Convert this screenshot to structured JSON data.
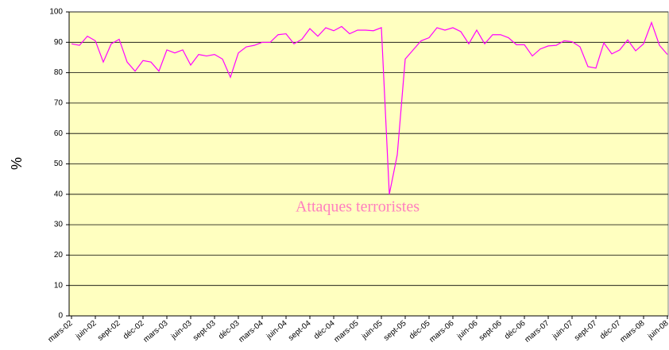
{
  "chart_data": {
    "type": "line",
    "y_label": "%",
    "annotation": "Attaques terroristes",
    "categories": [
      "mars-02",
      null,
      null,
      "juin-02",
      null,
      null,
      "sept-02",
      null,
      null,
      "déc-02",
      null,
      null,
      "mars-03",
      null,
      null,
      "juin-03",
      null,
      null,
      "sept-03",
      null,
      null,
      "déc-03",
      null,
      null,
      "mars-04",
      null,
      null,
      "juin-04",
      null,
      null,
      "sept-04",
      null,
      null,
      "déc-04",
      null,
      null,
      "mars-05",
      null,
      null,
      "juin-05",
      null,
      null,
      "sept-05",
      null,
      null,
      "déc-05",
      null,
      null,
      "mars-06",
      null,
      null,
      "juin-06",
      null,
      null,
      "sept-06",
      null,
      null,
      "déc-06",
      null,
      null,
      "mars-07",
      null,
      null,
      "juin-07",
      null,
      null,
      "sept-07",
      null,
      null,
      "déc-07",
      null,
      null,
      "mars-08",
      null,
      null,
      "juin-08"
    ],
    "series": [
      {
        "name": "%",
        "color": "#ff00ff",
        "values": [
          89.5,
          89,
          92,
          90.5,
          83.5,
          89.5,
          91,
          83.5,
          80.5,
          84,
          83.5,
          80.5,
          87.5,
          86.5,
          87.5,
          82.5,
          86,
          85.5,
          86,
          84.5,
          78.5,
          86.5,
          88.5,
          89,
          90,
          90,
          92.5,
          92.8,
          89.5,
          91,
          94.5,
          92,
          94.8,
          93.8,
          95.2,
          92.8,
          94,
          94,
          93.8,
          94.8,
          40,
          53,
          84.5,
          87.5,
          90.5,
          91.5,
          94.8,
          94,
          94.8,
          93.5,
          89.5,
          94,
          89.5,
          92.5,
          92.5,
          91.5,
          89.2,
          89.2,
          85.5,
          87.8,
          88.8,
          89,
          90.5,
          90.2,
          88.5,
          82,
          81.5,
          89.8,
          86.2,
          87.5,
          90.8,
          87.2,
          89.5,
          96.5,
          89,
          86
        ]
      }
    ],
    "ylim": [
      0,
      100
    ],
    "yticks": [
      0,
      10,
      20,
      30,
      40,
      50,
      60,
      70,
      80,
      90,
      100
    ],
    "grid": true
  }
}
